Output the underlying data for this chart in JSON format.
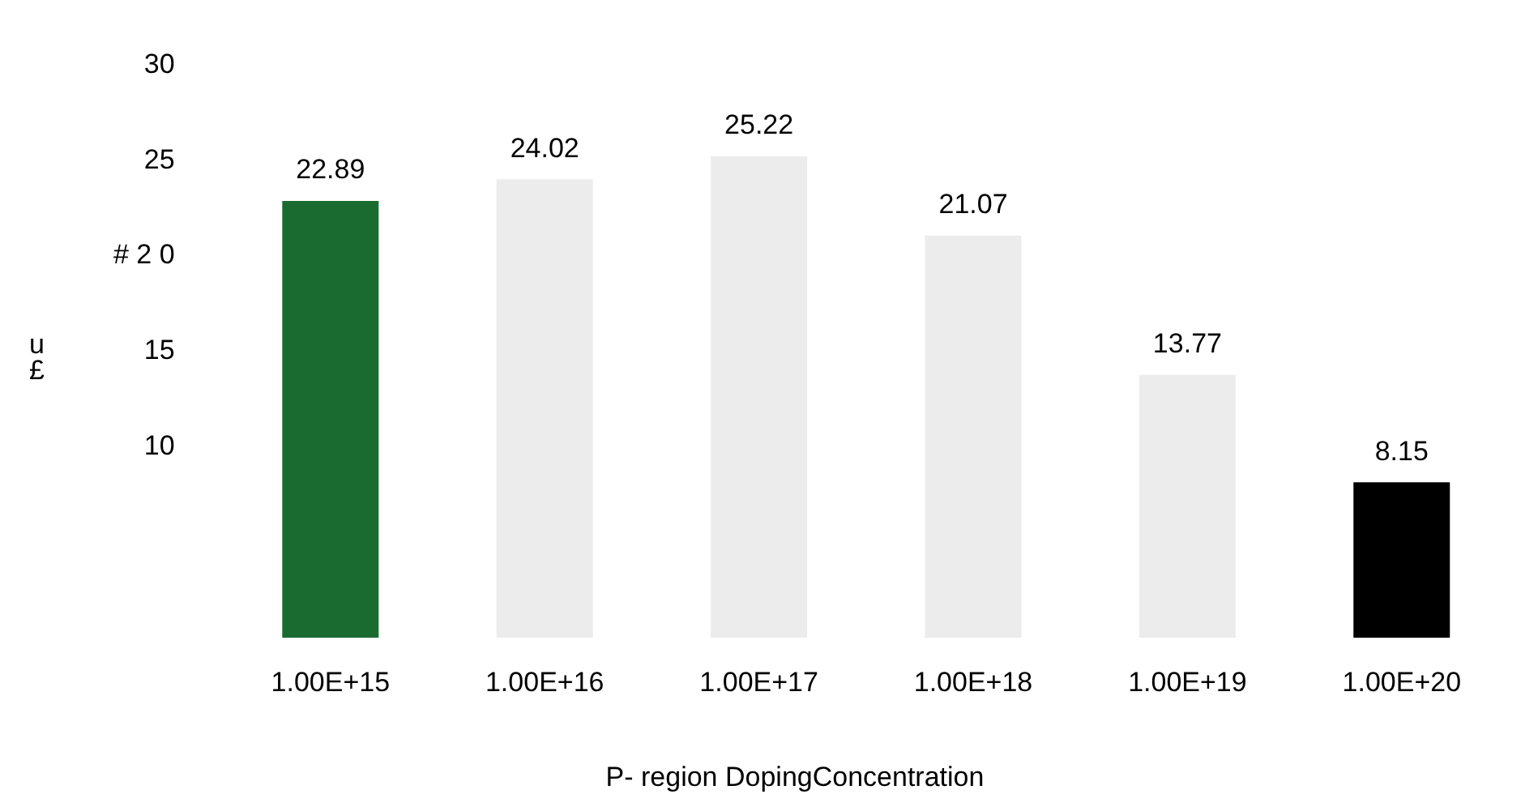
{
  "chart_data": {
    "type": "bar",
    "xlabel": "P- region DopingConcentration",
    "ylabel": "u £",
    "categories": [
      "1.00E+15",
      "1.00E+16",
      "1.00E+17",
      "1.00E+18",
      "1.00E+19",
      "1.00E+20"
    ],
    "values": [
      22.89,
      24.02,
      25.22,
      21.07,
      13.77,
      8.15
    ],
    "colors": [
      "#1a6b30",
      "#ececec",
      "#ececec",
      "#ececec",
      "#ececec",
      "#000000"
    ],
    "ylim": [
      0,
      30
    ],
    "yticks": [
      10,
      15,
      {
        "value": 20,
        "label": "# 2 0"
      },
      25,
      30
    ],
    "data_labels": true,
    "grid": false,
    "legend": false
  }
}
